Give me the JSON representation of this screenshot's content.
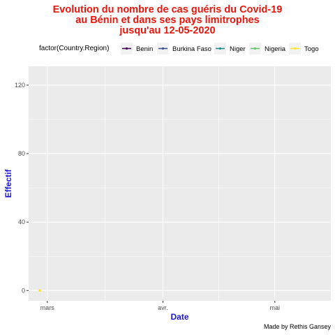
{
  "title_lines": [
    "Evolution du nombre de cas guéris du Covid-19",
    "au Bénin et dans ses  pays limitrophes",
    "jusqu'au 12-05-2020"
  ],
  "caption": "Made by Rethis Gansey",
  "legend": {
    "title": "factor(Country.Region)",
    "position": "top",
    "entries": [
      {
        "label": "Benin",
        "color": "#440154"
      },
      {
        "label": "Burkina Faso",
        "color": "#3b528b"
      },
      {
        "label": "Niger",
        "color": "#21908c"
      },
      {
        "label": "Nigeria",
        "color": "#5dc863"
      },
      {
        "label": "Togo",
        "color": "#fde725"
      }
    ]
  },
  "colors": {
    "title": "#e8160c",
    "axis_title": "#1a16d6",
    "panel": "#ebebeb",
    "grid": "#ffffff"
  },
  "chart_data": {
    "type": "line",
    "title": "Evolution du nombre de cas guéris du Covid-19 au Bénin et dans ses  pays limitrophes jusqu'au 12-05-2020",
    "xlabel": "Date",
    "ylabel": "Effectif",
    "x_type": "date",
    "xlim": [
      "2020-02-25",
      "2020-05-16"
    ],
    "ylim": [
      -6,
      131
    ],
    "x_ticks": [
      {
        "date": "2020-03-01",
        "label": "mars"
      },
      {
        "date": "2020-04-01",
        "label": "avr."
      },
      {
        "date": "2020-05-01",
        "label": "mai"
      }
    ],
    "y_ticks": [
      0,
      40,
      80,
      120
    ],
    "grid": true,
    "series": [
      {
        "name": "Benin",
        "color": "#440154",
        "points": []
      },
      {
        "name": "Burkina Faso",
        "color": "#3b528b",
        "points": []
      },
      {
        "name": "Niger",
        "color": "#21908c",
        "points": []
      },
      {
        "name": "Nigeria",
        "color": "#5dc863",
        "points": []
      },
      {
        "name": "Togo",
        "color": "#fde725",
        "points": [
          {
            "x": "2020-02-28",
            "y": 0
          }
        ]
      }
    ]
  }
}
